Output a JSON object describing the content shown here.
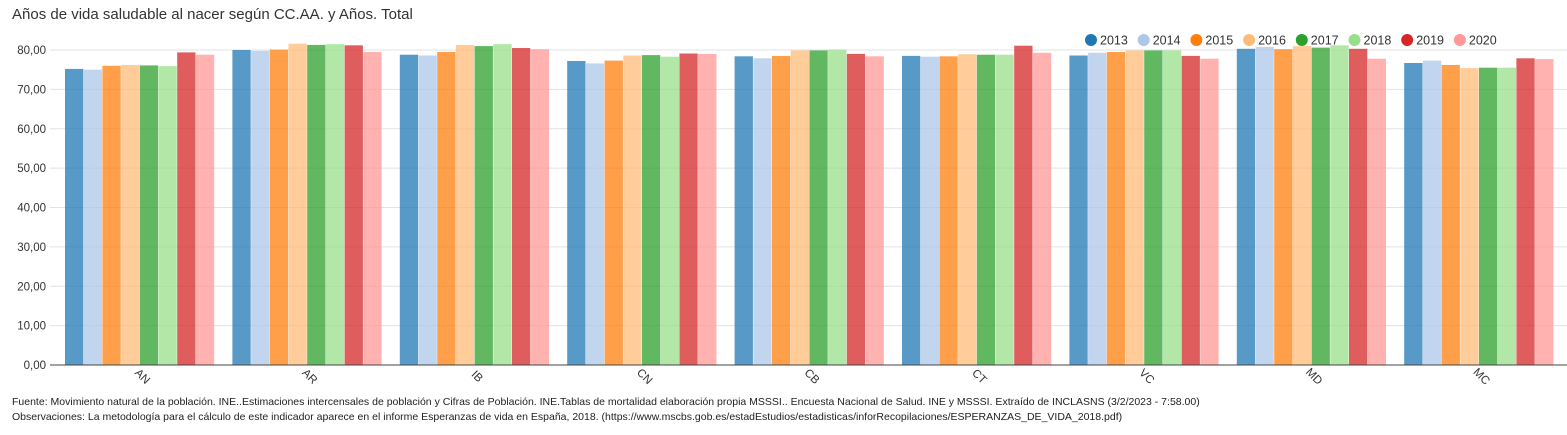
{
  "chart_data": {
    "type": "bar",
    "title": "Años de vida saludable al nacer según CC.AA. y Años. Total",
    "categories": [
      "AN",
      "AR",
      "IB",
      "CN",
      "CB",
      "CT",
      "VC",
      "MD",
      "MC"
    ],
    "ylim": [
      0,
      80
    ],
    "yticks": [
      "0,00",
      "10,00",
      "20,00",
      "30,00",
      "40,00",
      "50,00",
      "60,00",
      "70,00",
      "80,00"
    ],
    "ytick_values": [
      0,
      10,
      20,
      30,
      40,
      50,
      60,
      70,
      80
    ],
    "grid": true,
    "legend_position": "top-right",
    "series": [
      {
        "name": "2013",
        "color": "#1f77b4",
        "values": [
          75.2,
          80.0,
          78.8,
          77.2,
          78.4,
          78.5,
          78.6,
          80.3,
          76.7
        ]
      },
      {
        "name": "2014",
        "color": "#aec7e8",
        "values": [
          75.0,
          79.8,
          78.6,
          76.6,
          77.9,
          78.3,
          79.3,
          80.8,
          77.3
        ]
      },
      {
        "name": "2015",
        "color": "#ff7f0e",
        "values": [
          76.0,
          80.1,
          79.5,
          77.3,
          78.5,
          78.4,
          79.5,
          80.2,
          76.2
        ]
      },
      {
        "name": "2016",
        "color": "#ffbb78",
        "values": [
          76.2,
          81.6,
          81.3,
          78.6,
          79.9,
          78.9,
          79.9,
          81.0,
          75.4
        ]
      },
      {
        "name": "2017",
        "color": "#2ca02c",
        "values": [
          76.1,
          81.3,
          81.0,
          78.7,
          79.9,
          78.8,
          79.9,
          80.6,
          75.5
        ]
      },
      {
        "name": "2018",
        "color": "#98df8a",
        "values": [
          75.9,
          81.5,
          81.5,
          78.3,
          80.1,
          78.8,
          79.9,
          81.2,
          75.5
        ]
      },
      {
        "name": "2019",
        "color": "#d62728",
        "values": [
          79.4,
          81.2,
          80.5,
          79.1,
          79.0,
          81.1,
          78.5,
          80.3,
          77.9
        ]
      },
      {
        "name": "2020",
        "color": "#ff9896",
        "values": [
          78.8,
          79.5,
          80.2,
          79.0,
          78.4,
          79.3,
          77.8,
          77.8,
          77.7
        ]
      }
    ]
  },
  "footer": {
    "source": "Fuente: Movimiento natural de la población. INE..Estimaciones intercensales de población y Cifras de Población. INE.Tablas de mortalidad elaboración propia MSSSI.. Encuesta Nacional de Salud. INE y MSSSI. Extraído de INCLASNS (3/2/2023 - 7:58.00)",
    "observations": "Observaciones: La metodología para el cálculo de este indicador aparece en el informe Esperanzas de vida en España, 2018. (https://www.mscbs.gob.es/estadEstudios/estadisticas/inforRecopilaciones/ESPERANZAS_DE_VIDA_2018.pdf)"
  }
}
